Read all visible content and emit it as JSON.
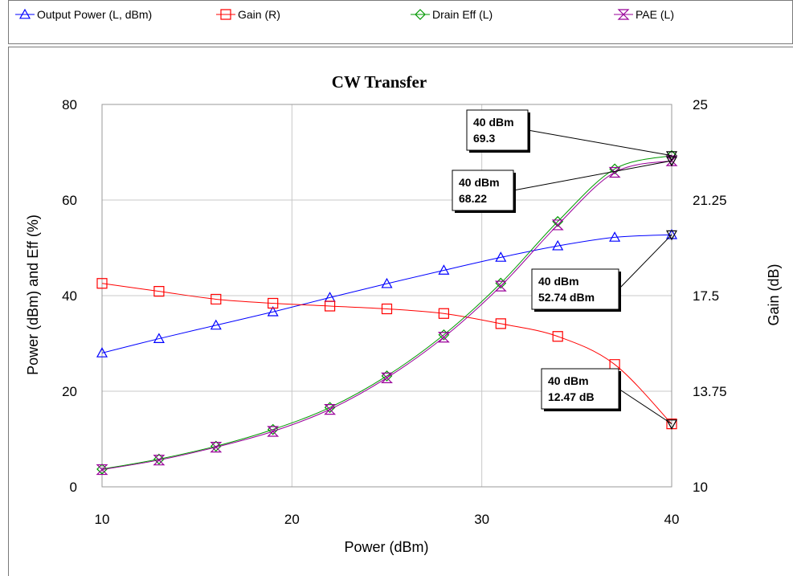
{
  "chart_data": {
    "type": "line",
    "title": "CW Transfer",
    "xlabel": "Power (dBm)",
    "ylabel": "Power (dBm) and Eff (%)",
    "y2label": "Gain (dB)",
    "xlim": [
      10,
      40
    ],
    "ylim": [
      0,
      80
    ],
    "y2lim": [
      10,
      25
    ],
    "xticks": [
      "10",
      "20",
      "30",
      "40"
    ],
    "yticks": [
      "0",
      "20",
      "40",
      "60",
      "80"
    ],
    "y2ticks": [
      "10",
      "13.75",
      "17.5",
      "21.25",
      "25"
    ],
    "grid": true,
    "legend_position": "top",
    "x": [
      10,
      13,
      16,
      19,
      22,
      25,
      28,
      31,
      34,
      37,
      40
    ],
    "series": [
      {
        "name": "Output Power (L, dBm)",
        "axis": "left",
        "color": "#0000ff",
        "marker": "triangle-up",
        "values": [
          28.0,
          31.0,
          33.8,
          36.6,
          39.6,
          42.5,
          45.3,
          48.0,
          50.4,
          52.2,
          52.74
        ]
      },
      {
        "name": "Gain (R)",
        "axis": "right",
        "color": "#ff0000",
        "marker": "square",
        "values": [
          17.98,
          17.67,
          17.36,
          17.2,
          17.09,
          16.98,
          16.8,
          16.4,
          15.9,
          14.8,
          12.47
        ]
      },
      {
        "name": "Drain Eff (L)",
        "axis": "left",
        "color": "#009900",
        "marker": "diamond",
        "values": [
          3.7,
          5.8,
          8.5,
          12.0,
          16.6,
          23.2,
          31.8,
          42.6,
          55.5,
          66.5,
          69.3
        ]
      },
      {
        "name": "PAE (L)",
        "axis": "left",
        "color": "#990099",
        "marker": "hourglass",
        "values": [
          3.6,
          5.6,
          8.3,
          11.6,
          16.2,
          22.8,
          31.3,
          42.0,
          54.8,
          65.8,
          68.22
        ]
      }
    ],
    "markers": [
      {
        "line1": "40 dBm",
        "line2": "69.3",
        "x": 40,
        "y": 69.3,
        "axis": "left"
      },
      {
        "line1": "40 dBm",
        "line2": "68.22",
        "x": 40,
        "y": 68.22,
        "axis": "left"
      },
      {
        "line1": "40 dBm",
        "line2": "52.74 dBm",
        "x": 40,
        "y": 52.74,
        "axis": "left"
      },
      {
        "line1": "40 dBm",
        "line2": "12.47 dB",
        "x": 40,
        "y": 12.47,
        "axis": "right"
      }
    ]
  }
}
